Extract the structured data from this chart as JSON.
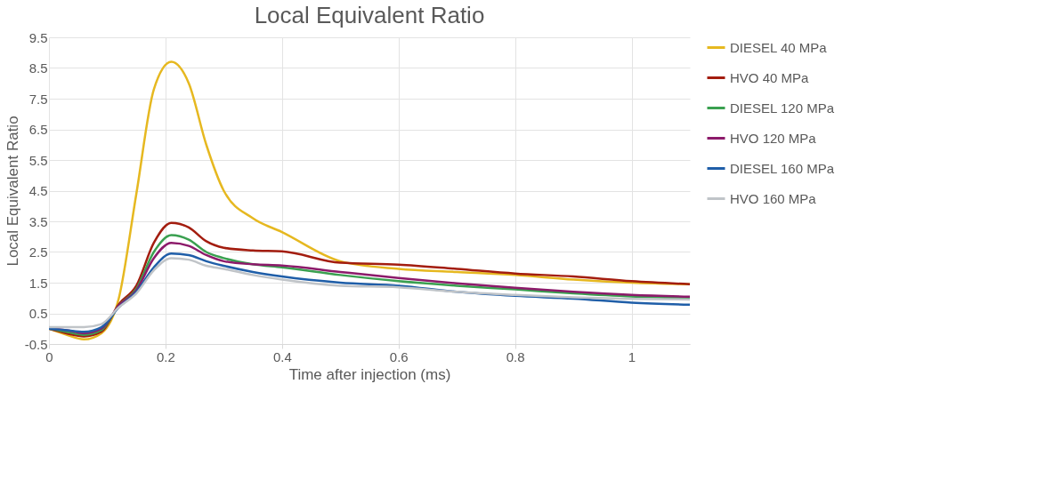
{
  "chart_data": {
    "type": "line",
    "title": "Local Equivalent Ratio",
    "xlabel": "Time after injection (ms)",
    "ylabel": "Local Equivalent Ratio",
    "x": [
      0,
      0.03,
      0.06,
      0.09,
      0.12,
      0.15,
      0.18,
      0.21,
      0.24,
      0.27,
      0.3,
      0.35,
      0.4,
      0.5,
      0.6,
      0.7,
      0.8,
      0.9,
      1.0,
      1.1
    ],
    "xlim": [
      0,
      1.1
    ],
    "xticks": [
      0,
      0.2,
      0.4,
      0.6,
      0.8,
      1
    ],
    "ylim": [
      -0.5,
      9.5
    ],
    "yticks": [
      -0.5,
      0.5,
      1.5,
      2.5,
      3.5,
      4.5,
      5.5,
      6.5,
      7.5,
      8.5,
      9.5
    ],
    "grid": true,
    "legend": "right",
    "line_style": "solid",
    "marker": "none",
    "series": [
      {
        "name": "DIESEL 40 MPa",
        "color": "#e6b820",
        "values": [
          0,
          -0.2,
          -0.35,
          -0.15,
          1.0,
          4.4,
          7.8,
          8.7,
          8.0,
          6.0,
          4.5,
          3.6,
          3.15,
          2.2,
          1.95,
          1.85,
          1.75,
          1.6,
          1.5,
          1.45
        ]
      },
      {
        "name": "HVO 40 MPa",
        "color": "#a31d0f",
        "values": [
          0,
          -0.15,
          -0.25,
          -0.1,
          0.8,
          1.4,
          2.8,
          3.45,
          3.3,
          2.85,
          2.64,
          2.55,
          2.52,
          2.15,
          2.09,
          1.95,
          1.8,
          1.7,
          1.55,
          1.45
        ]
      },
      {
        "name": "DIESEL 120 MPa",
        "color": "#3aa050",
        "values": [
          0,
          -0.1,
          -0.2,
          -0.05,
          0.75,
          1.3,
          2.5,
          3.05,
          2.9,
          2.5,
          2.3,
          2.1,
          2.0,
          1.75,
          1.55,
          1.4,
          1.28,
          1.15,
          1.05,
          1.0
        ]
      },
      {
        "name": "HVO 120 MPa",
        "color": "#8c1a6a",
        "values": [
          0,
          -0.05,
          -0.15,
          0,
          0.75,
          1.25,
          2.3,
          2.8,
          2.7,
          2.4,
          2.2,
          2.1,
          2.06,
          1.85,
          1.65,
          1.48,
          1.33,
          1.2,
          1.1,
          1.04
        ]
      },
      {
        "name": "DIESEL 160 MPa",
        "color": "#1f5ea8",
        "values": [
          0,
          -0.05,
          -0.1,
          0.05,
          0.7,
          1.2,
          2.0,
          2.45,
          2.4,
          2.2,
          2.05,
          1.85,
          1.7,
          1.5,
          1.4,
          1.2,
          1.07,
          0.98,
          0.85,
          0.78
        ]
      },
      {
        "name": "HVO 160 MPa",
        "color": "#c0c4c8",
        "values": [
          0.05,
          0.05,
          0.05,
          0.15,
          0.7,
          1.15,
          1.9,
          2.3,
          2.25,
          2.05,
          1.95,
          1.75,
          1.6,
          1.4,
          1.35,
          1.2,
          1.1,
          1.02,
          0.97,
          0.95
        ]
      }
    ]
  }
}
